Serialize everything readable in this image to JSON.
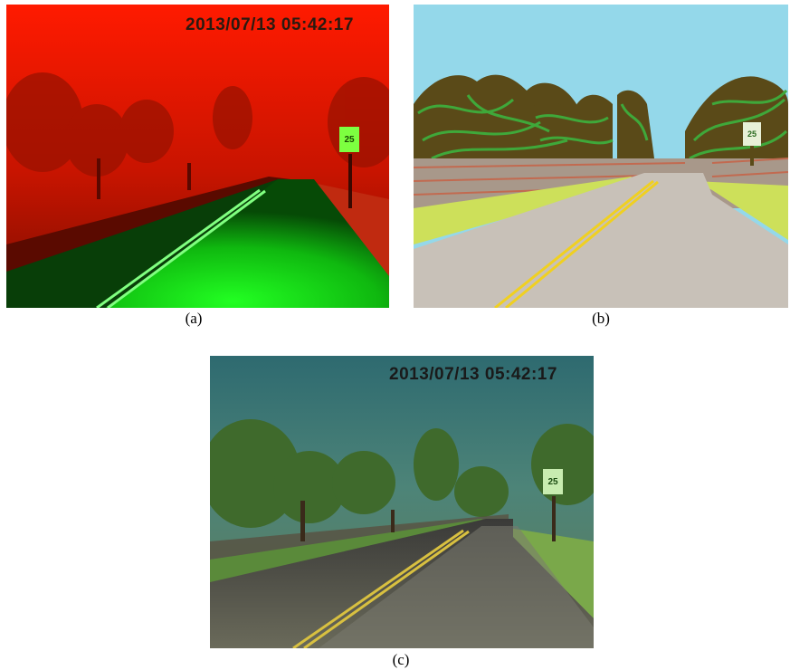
{
  "panels": [
    {
      "id": "a",
      "caption": "(a)",
      "timestamp": "2013/07/13 05:42:17",
      "sign_text": "25"
    },
    {
      "id": "b",
      "caption": "(b)",
      "sign_text": "25"
    },
    {
      "id": "c",
      "caption": "(c)",
      "timestamp": "2013/07/13 05:42:17",
      "sign_text": "25"
    }
  ],
  "colors": {
    "panel_a_sky": "#ff1400",
    "panel_a_road": "#10ff10",
    "panel_b_sky": "#94d8ea",
    "panel_b_road": "#c8c1b8",
    "panel_b_trees": "#3f8a2a",
    "panel_c_sky": "#2f6e74",
    "panel_c_road": "#4a4a44",
    "lane_line": "#e8d020"
  }
}
